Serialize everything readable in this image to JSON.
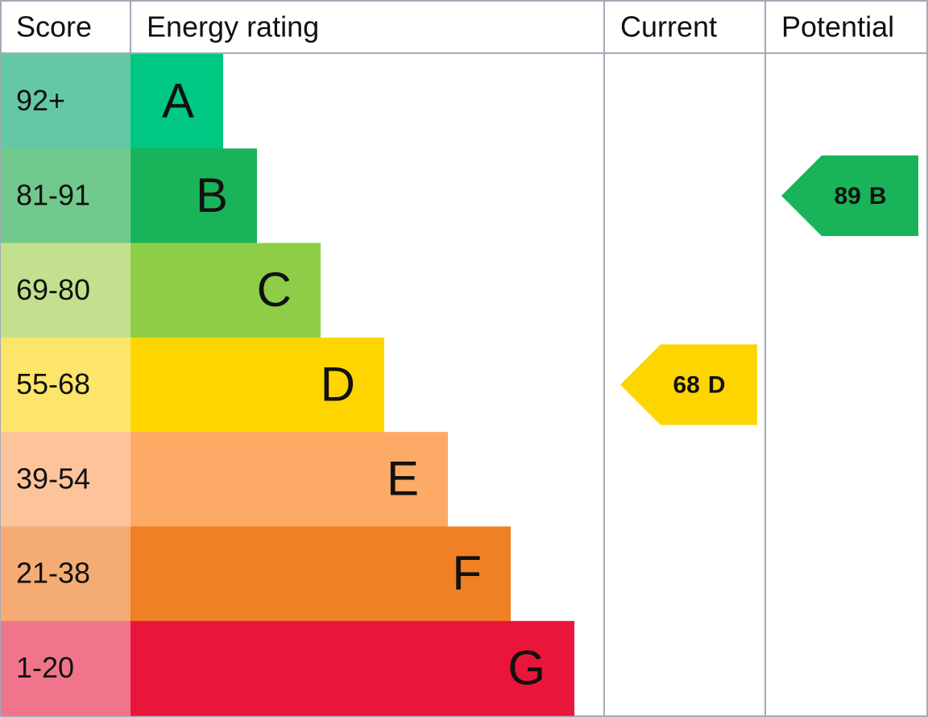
{
  "header": {
    "score": "Score",
    "energy_rating": "Energy rating",
    "current": "Current",
    "potential": "Potential"
  },
  "bands": [
    {
      "score": "92+",
      "letter": "A",
      "color": "#00c781",
      "score_color": "#64c8a4"
    },
    {
      "score": "81-91",
      "letter": "B",
      "color": "#19b459",
      "score_color": "#72c98d"
    },
    {
      "score": "69-80",
      "letter": "C",
      "color": "#8dce46",
      "score_color": "#c2e08d"
    },
    {
      "score": "55-68",
      "letter": "D",
      "color": "#ffd500",
      "score_color": "#fde46a"
    },
    {
      "score": "39-54",
      "letter": "E",
      "color": "#fcaa65",
      "score_color": "#fdc49b"
    },
    {
      "score": "21-38",
      "letter": "F",
      "color": "#ef8023",
      "score_color": "#f4ac74"
    },
    {
      "score": "1-20",
      "letter": "G",
      "color": "#e9153b",
      "score_color": "#f0758a"
    }
  ],
  "current": {
    "score": 68,
    "rating": "D",
    "color": "#ffd500"
  },
  "potential": {
    "score": 89,
    "rating": "B",
    "color": "#19b459"
  }
}
